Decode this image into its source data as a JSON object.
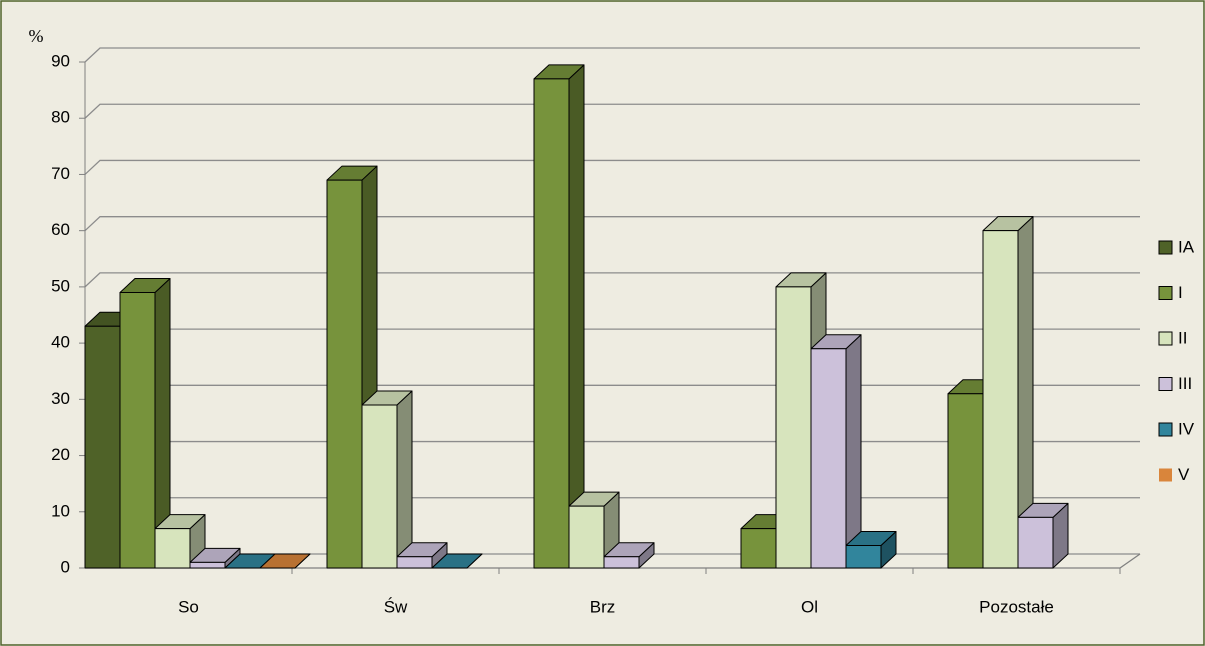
{
  "chart_data": {
    "type": "bar3d",
    "y_axis_label": "%",
    "categories": [
      "So",
      "Św",
      "Brz",
      "Ol",
      "Pozostałe"
    ],
    "series": [
      {
        "name": "IA",
        "color": "#4f6228",
        "values": [
          43,
          null,
          null,
          null,
          null
        ]
      },
      {
        "name": "I",
        "color": "#77933c",
        "values": [
          49,
          69,
          87,
          7,
          31
        ]
      },
      {
        "name": "II",
        "color": "#d7e4bd",
        "values": [
          7,
          29,
          11,
          50,
          60
        ]
      },
      {
        "name": "III",
        "color": "#ccc1da",
        "values": [
          1,
          2,
          2,
          39,
          9
        ]
      },
      {
        "name": "IV",
        "color": "#31859c",
        "values": [
          0,
          0,
          null,
          4,
          null
        ]
      },
      {
        "name": "V",
        "color": "#d9853b",
        "values": [
          0,
          null,
          null,
          null,
          null
        ]
      }
    ],
    "ylim": [
      0,
      90
    ],
    "yticks": [
      0,
      10,
      20,
      30,
      40,
      50,
      60,
      70,
      80,
      90
    ],
    "grid": true,
    "legend": "right"
  }
}
